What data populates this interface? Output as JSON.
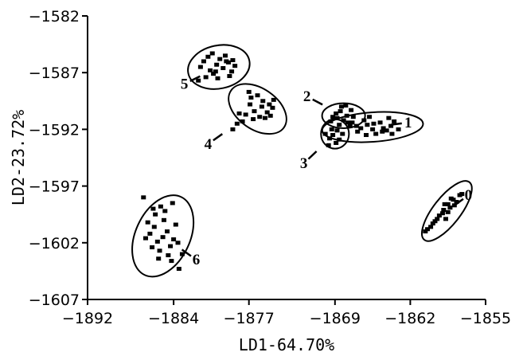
{
  "chart_data": {
    "type": "scatter",
    "xlabel": "LD1-64.70%",
    "ylabel": "LD2-23.72%",
    "xlim": [
      -1892,
      -1855
    ],
    "ylim": [
      -1607,
      -1582
    ],
    "xticks": [
      -1892,
      -1884,
      -1877,
      -1869,
      -1862,
      -1855
    ],
    "yticks": [
      -1582,
      -1587,
      -1592,
      -1597,
      -1602,
      -1607
    ],
    "grid": false,
    "legend": "none",
    "marker_color": "#000000",
    "groups": [
      {
        "label": "0",
        "cx": -1858.6,
        "cy": -1599.2,
        "rx": 3.4,
        "ry": 1.2,
        "angle": 52,
        "label_at": [
          -1856.6,
          -1597.8
        ],
        "points": [
          [
            -1858.5,
            -1598.6
          ],
          [
            -1858.0,
            -1598.2
          ],
          [
            -1858.9,
            -1599.1
          ],
          [
            -1859.3,
            -1599.6
          ],
          [
            -1858.3,
            -1598.9
          ],
          [
            -1857.7,
            -1598.4
          ],
          [
            -1859.7,
            -1600.1
          ],
          [
            -1860.1,
            -1600.6
          ],
          [
            -1860.6,
            -1601.0
          ],
          [
            -1858.8,
            -1598.6
          ],
          [
            -1859.0,
            -1599.4
          ],
          [
            -1857.4,
            -1597.8
          ],
          [
            -1859.5,
            -1599.9
          ],
          [
            -1858.2,
            -1598.1
          ],
          [
            -1859.9,
            -1600.3
          ],
          [
            -1857.9,
            -1598.7
          ],
          [
            -1858.7,
            -1599.9
          ],
          [
            -1857.2,
            -1597.7
          ],
          [
            -1860.4,
            -1600.8
          ],
          [
            -1858.5,
            -1599.3
          ]
        ]
      },
      {
        "label": "1",
        "cx": -1865.5,
        "cy": -1591.8,
        "rx": 4.7,
        "ry": 1.3,
        "angle": 4,
        "label_at": [
          -1862.2,
          -1591.4
        ],
        "points": [
          [
            -1866.0,
            -1591.6
          ],
          [
            -1865.5,
            -1592.0
          ],
          [
            -1864.8,
            -1591.4
          ],
          [
            -1864.2,
            -1592.1
          ],
          [
            -1866.6,
            -1591.9
          ],
          [
            -1863.8,
            -1591.7
          ],
          [
            -1865.2,
            -1592.4
          ],
          [
            -1866.3,
            -1591.2
          ],
          [
            -1863.5,
            -1591.3
          ],
          [
            -1864.6,
            -1592.2
          ],
          [
            -1867.0,
            -1591.7
          ],
          [
            -1865.8,
            -1590.9
          ],
          [
            -1863.1,
            -1592.0
          ],
          [
            -1866.9,
            -1592.2
          ],
          [
            -1864.0,
            -1591.0
          ],
          [
            -1865.4,
            -1591.5
          ],
          [
            -1866.1,
            -1592.5
          ],
          [
            -1864.5,
            -1591.9
          ],
          [
            -1867.4,
            -1591.4
          ],
          [
            -1863.7,
            -1592.4
          ]
        ]
      },
      {
        "label": "2",
        "cx": -1868.2,
        "cy": -1590.8,
        "rx": 2.0,
        "ry": 1.1,
        "angle": 0,
        "label_at": [
          -1871.6,
          -1589.1
        ],
        "points": [
          [
            -1868.5,
            -1590.4
          ],
          [
            -1867.9,
            -1590.8
          ],
          [
            -1868.2,
            -1591.2
          ],
          [
            -1868.9,
            -1590.6
          ],
          [
            -1867.5,
            -1590.3
          ],
          [
            -1868.4,
            -1590.0
          ],
          [
            -1867.8,
            -1591.4
          ],
          [
            -1868.8,
            -1591.0
          ],
          [
            -1867.3,
            -1590.9
          ],
          [
            -1869.2,
            -1590.9
          ],
          [
            -1868.0,
            -1589.9
          ],
          [
            -1867.6,
            -1591.7
          ],
          [
            -1868.6,
            -1591.6
          ],
          [
            -1869.4,
            -1591.3
          ]
        ]
      },
      {
        "label": "3",
        "cx": -1869.0,
        "cy": -1592.4,
        "rx": 1.3,
        "ry": 1.3,
        "angle": 0,
        "label_at": [
          -1871.9,
          -1595.0
        ],
        "points": [
          [
            -1869.2,
            -1592.5
          ],
          [
            -1868.8,
            -1592.1
          ],
          [
            -1869.5,
            -1592.8
          ],
          [
            -1868.6,
            -1592.9
          ],
          [
            -1869.3,
            -1592.0
          ],
          [
            -1869.9,
            -1592.4
          ],
          [
            -1868.9,
            -1593.2
          ],
          [
            -1868.3,
            -1592.4
          ],
          [
            -1869.6,
            -1593.4
          ]
        ]
      },
      {
        "label": "4",
        "cx": -1876.2,
        "cy": -1590.2,
        "rx": 3.0,
        "ry": 1.8,
        "angle": -35,
        "label_at": [
          -1880.8,
          -1593.3
        ],
        "points": [
          [
            -1876.5,
            -1590.4
          ],
          [
            -1875.8,
            -1590.0
          ],
          [
            -1876.8,
            -1589.2
          ],
          [
            -1877.3,
            -1590.7
          ],
          [
            -1875.3,
            -1590.5
          ],
          [
            -1875.7,
            -1589.5
          ],
          [
            -1877.6,
            -1591.3
          ],
          [
            -1876.2,
            -1589.0
          ],
          [
            -1874.8,
            -1590.1
          ],
          [
            -1878.1,
            -1591.5
          ],
          [
            -1876.0,
            -1590.9
          ],
          [
            -1877.0,
            -1588.7
          ],
          [
            -1875.1,
            -1589.8
          ],
          [
            -1878.5,
            -1592.0
          ],
          [
            -1876.6,
            -1591.1
          ],
          [
            -1874.7,
            -1589.4
          ],
          [
            -1877.9,
            -1590.6
          ],
          [
            -1875.5,
            -1591.0
          ],
          [
            -1876.9,
            -1589.8
          ],
          [
            -1875.0,
            -1590.8
          ]
        ]
      },
      {
        "label": "5",
        "cx": -1879.8,
        "cy": -1586.5,
        "rx": 2.9,
        "ry": 1.9,
        "angle": 12,
        "label_at": [
          -1883.0,
          -1588.0
        ],
        "points": [
          [
            -1880.0,
            -1586.3
          ],
          [
            -1879.4,
            -1586.6
          ],
          [
            -1880.6,
            -1586.8
          ],
          [
            -1878.9,
            -1586.1
          ],
          [
            -1881.2,
            -1586.0
          ],
          [
            -1879.7,
            -1585.8
          ],
          [
            -1880.3,
            -1587.1
          ],
          [
            -1878.6,
            -1586.9
          ],
          [
            -1881.0,
            -1587.4
          ],
          [
            -1879.2,
            -1585.5
          ],
          [
            -1880.8,
            -1585.6
          ],
          [
            -1878.3,
            -1586.4
          ],
          [
            -1879.9,
            -1587.5
          ],
          [
            -1881.5,
            -1586.5
          ],
          [
            -1878.8,
            -1587.3
          ],
          [
            -1880.4,
            -1585.3
          ],
          [
            -1879.1,
            -1586.0
          ],
          [
            -1880.1,
            -1586.9
          ],
          [
            -1881.7,
            -1587.7
          ],
          [
            -1878.5,
            -1585.9
          ]
        ]
      },
      {
        "label": "6",
        "cx": -1885.0,
        "cy": -1601.4,
        "rx": 4.0,
        "ry": 2.4,
        "angle": 65,
        "label_at": [
          -1881.9,
          -1603.5
        ],
        "points": [
          [
            -1885.0,
            -1601.5
          ],
          [
            -1884.6,
            -1601.0
          ],
          [
            -1885.5,
            -1601.9
          ],
          [
            -1884.3,
            -1602.3
          ],
          [
            -1885.8,
            -1600.6
          ],
          [
            -1884.9,
            -1600.0
          ],
          [
            -1885.3,
            -1602.7
          ],
          [
            -1886.2,
            -1601.2
          ],
          [
            -1884.0,
            -1601.7
          ],
          [
            -1885.7,
            -1599.5
          ],
          [
            -1884.5,
            -1603.1
          ],
          [
            -1886.0,
            -1602.4
          ],
          [
            -1883.8,
            -1600.4
          ],
          [
            -1885.2,
            -1598.8
          ],
          [
            -1884.2,
            -1603.6
          ],
          [
            -1886.4,
            -1600.2
          ],
          [
            -1883.6,
            -1602.0
          ],
          [
            -1885.4,
            -1603.4
          ],
          [
            -1884.8,
            -1599.2
          ],
          [
            -1886.6,
            -1601.6
          ],
          [
            -1883.5,
            -1604.3
          ],
          [
            -1885.9,
            -1599.0
          ],
          [
            -1884.1,
            -1598.5
          ],
          [
            -1886.8,
            -1598.0
          ],
          [
            -1883.2,
            -1603.0
          ]
        ]
      }
    ]
  }
}
